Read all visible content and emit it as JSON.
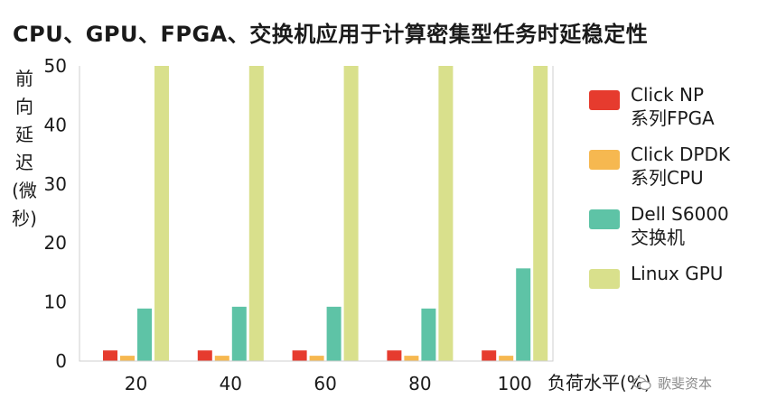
{
  "chart_data": {
    "type": "bar",
    "title": "CPU、GPU、FPGA、交换机应用于计算密集型任务时延稳定性",
    "ylabel": "前向延迟(微秒)",
    "xlabel": "负荷水平(%)",
    "ylim": [
      0,
      50
    ],
    "yticks": [
      0,
      10,
      20,
      30,
      40,
      50
    ],
    "categories": [
      "20",
      "40",
      "60",
      "80",
      "100"
    ],
    "series": [
      {
        "name": "Click NP 系列FPGA",
        "label": "Click NP\n系列FPGA",
        "color": "#e63b2e",
        "values": [
          1.8,
          1.8,
          1.8,
          1.8,
          1.8
        ]
      },
      {
        "name": "Click DPDK 系列CPU",
        "label": "Click DPDK\n系列CPU",
        "color": "#f6b850",
        "values": [
          0.9,
          0.9,
          0.9,
          0.9,
          0.9
        ]
      },
      {
        "name": "Dell S6000 交换机",
        "label": "Dell S6000\n交换机",
        "color": "#5ec3a6",
        "values": [
          8.9,
          9.2,
          9.2,
          8.9,
          15.7
        ]
      },
      {
        "name": "Linux GPU",
        "label": "Linux GPU",
        "color": "#d9e08c",
        "values": [
          51,
          51,
          51,
          51,
          51
        ]
      }
    ],
    "grid": false,
    "legend": "right"
  },
  "watermark": "歌斐资本"
}
